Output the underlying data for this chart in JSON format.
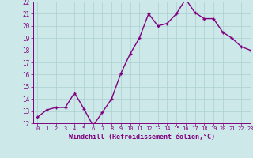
{
  "x": [
    0,
    1,
    2,
    3,
    4,
    5,
    6,
    7,
    8,
    9,
    10,
    11,
    12,
    13,
    14,
    15,
    16,
    17,
    18,
    19,
    20,
    21,
    22,
    23
  ],
  "y": [
    12.5,
    13.1,
    13.3,
    13.3,
    14.5,
    13.2,
    11.8,
    12.9,
    14.0,
    16.1,
    17.7,
    19.0,
    21.0,
    20.0,
    20.2,
    21.0,
    22.2,
    21.1,
    20.6,
    20.6,
    19.5,
    19.0,
    18.3,
    18.0
  ],
  "color": "#800080",
  "bg_color": "#cce8e8",
  "xlabel": "Windchill (Refroidissement éolien,°C)",
  "ylim": [
    12,
    22
  ],
  "xlim": [
    -0.5,
    23
  ],
  "yticks": [
    12,
    13,
    14,
    15,
    16,
    17,
    18,
    19,
    20,
    21,
    22
  ],
  "xticks": [
    0,
    1,
    2,
    3,
    4,
    5,
    6,
    7,
    8,
    9,
    10,
    11,
    12,
    13,
    14,
    15,
    16,
    17,
    18,
    19,
    20,
    21,
    22,
    23
  ],
  "grid_color": "#aacfcf",
  "markersize": 2.5,
  "linewidth": 1.0
}
